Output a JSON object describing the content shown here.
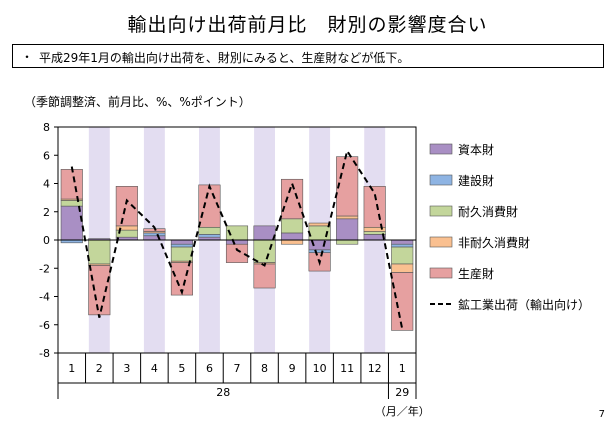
{
  "title": "輸出向け出荷前月比　財別の影響度合い",
  "note": {
    "bullet": "・",
    "text": "平成29年1月の輸出向け出荷を、財別にみると、生産財などが低下。"
  },
  "unit_label": "（季節調整済、前月比、%、%ポイント）",
  "page_number": "7",
  "colors": {
    "capital": "#A98FC4",
    "construction": "#8EB4E3",
    "durable": "#C3D69B",
    "nondurable": "#FAC090",
    "production": "#E6A0A0",
    "shade": "#E3DDF1"
  },
  "chart_data": {
    "type": "bar",
    "stacked": true,
    "categories": [
      "1",
      "2",
      "3",
      "4",
      "5",
      "6",
      "7",
      "8",
      "9",
      "10",
      "11",
      "12",
      "1"
    ],
    "year_labels": [
      {
        "label": "28",
        "span": [
          0,
          11
        ]
      },
      {
        "label": "29",
        "span": [
          12,
          12
        ]
      }
    ],
    "x_unit_label": "（月／年）",
    "ylim": [
      -8,
      8
    ],
    "yticks": [
      8,
      6,
      4,
      2,
      0,
      -2,
      -4,
      -6,
      -8
    ],
    "shaded_categories": [
      1,
      3,
      5,
      7,
      9,
      11
    ],
    "series": [
      {
        "name": "資本財",
        "key": "capital",
        "values": [
          2.4,
          0.1,
          0.2,
          0.3,
          -0.3,
          0.2,
          -0.3,
          1.0,
          0.5,
          -0.7,
          1.5,
          0.4,
          -0.3
        ]
      },
      {
        "name": "建設財",
        "key": "construction",
        "values": [
          -0.2,
          0.0,
          0.0,
          0.2,
          -0.2,
          0.2,
          0.0,
          0.0,
          0.0,
          -0.2,
          0.0,
          0.0,
          -0.2
        ]
      },
      {
        "name": "耐久消費財",
        "key": "durable",
        "values": [
          0.4,
          -1.7,
          0.5,
          0.0,
          -1.0,
          0.5,
          1.0,
          -1.6,
          1.0,
          1.0,
          -0.3,
          0.2,
          -1.2
        ]
      },
      {
        "name": "非耐久消費財",
        "key": "nondurable",
        "values": [
          0.1,
          -0.1,
          0.3,
          0.1,
          -0.1,
          0.0,
          0.0,
          -0.1,
          -0.3,
          0.2,
          0.2,
          0.3,
          -0.6
        ]
      },
      {
        "name": "生産財",
        "key": "production",
        "values": [
          2.1,
          -3.5,
          2.8,
          0.2,
          -2.3,
          3.0,
          -1.3,
          -1.7,
          2.8,
          -1.3,
          4.2,
          2.9,
          -4.1
        ]
      }
    ],
    "line": {
      "name": "鉱工業出荷（輸出向け）",
      "values": [
        5.2,
        -5.5,
        2.8,
        0.9,
        -3.7,
        3.8,
        -0.7,
        -1.8,
        4.0,
        -1.6,
        6.3,
        3.3,
        -6.3
      ]
    }
  }
}
